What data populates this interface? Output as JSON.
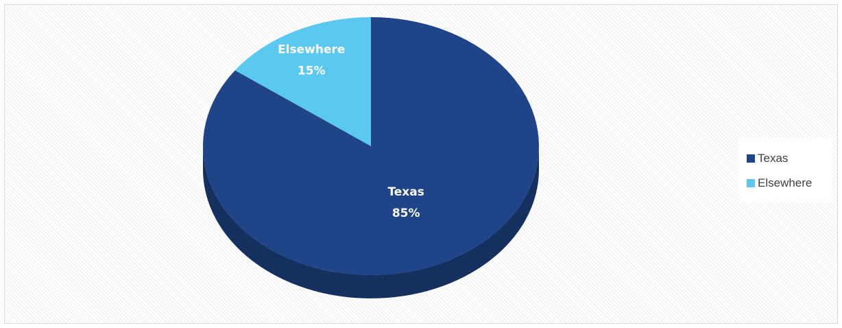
{
  "chart_data": {
    "type": "pie",
    "categories": [
      "Texas",
      "Elsewhere"
    ],
    "values": [
      85,
      15
    ],
    "value_labels": [
      "85%",
      "15%"
    ],
    "colors": [
      "#1f4487",
      "#5bc8f0"
    ],
    "side_colors": [
      "#15305f",
      "#3d93b3"
    ],
    "style": "3d-tilted",
    "title": "",
    "legend_position": "right",
    "legend": [
      {
        "label": "Texas",
        "color": "#1f4487"
      },
      {
        "label": "Elsewhere",
        "color": "#5bc8f0"
      }
    ]
  }
}
